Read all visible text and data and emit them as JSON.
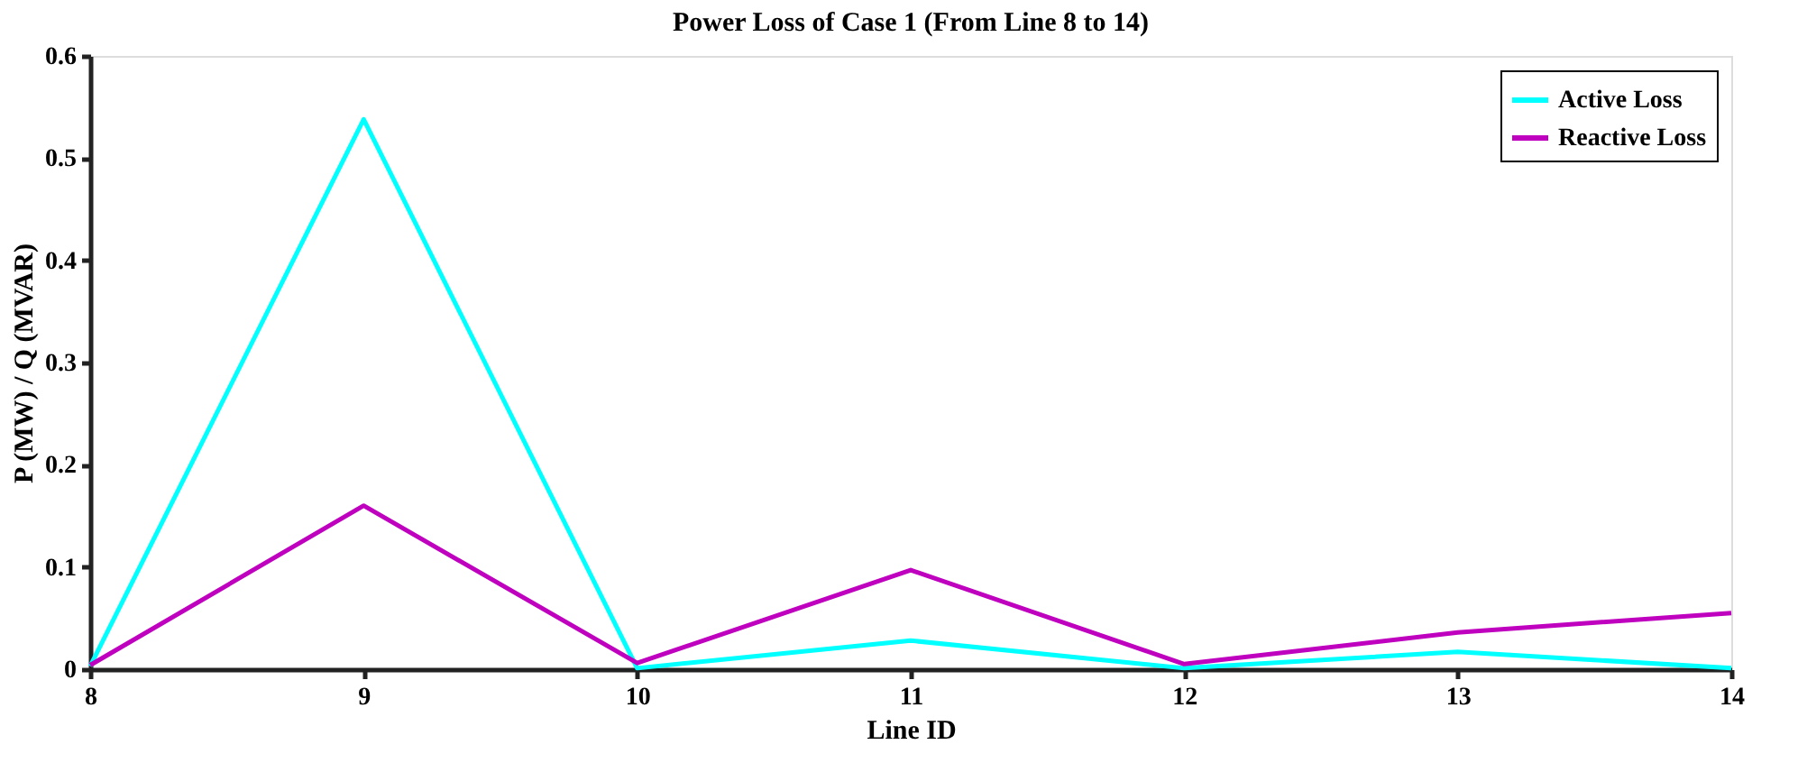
{
  "chart_data": {
    "type": "line",
    "title": "Power Loss of Case 1 (From Line 8 to 14)",
    "xlabel": "Line ID",
    "ylabel": "P (MW) / Q (MVAR)",
    "x": [
      8,
      9,
      10,
      11,
      12,
      13,
      14
    ],
    "series": [
      {
        "name": "Active Loss",
        "color": "#00ffff",
        "values": [
          0.003,
          0.538,
          0.001,
          0.028,
          0.001,
          0.017,
          0.001
        ]
      },
      {
        "name": "Reactive Loss",
        "color": "#bf00bf",
        "values": [
          0.004,
          0.16,
          0.006,
          0.097,
          0.005,
          0.036,
          0.055
        ]
      }
    ],
    "xlim": [
      8,
      14
    ],
    "xticks": [
      8,
      9,
      10,
      11,
      12,
      13,
      14
    ],
    "ylim": [
      0,
      0.6
    ],
    "yticks": [
      0,
      0.1,
      0.2,
      0.3,
      0.4,
      0.5,
      0.6
    ],
    "grid": false,
    "legend": "top right",
    "marker": "none",
    "line_style": "solid"
  }
}
